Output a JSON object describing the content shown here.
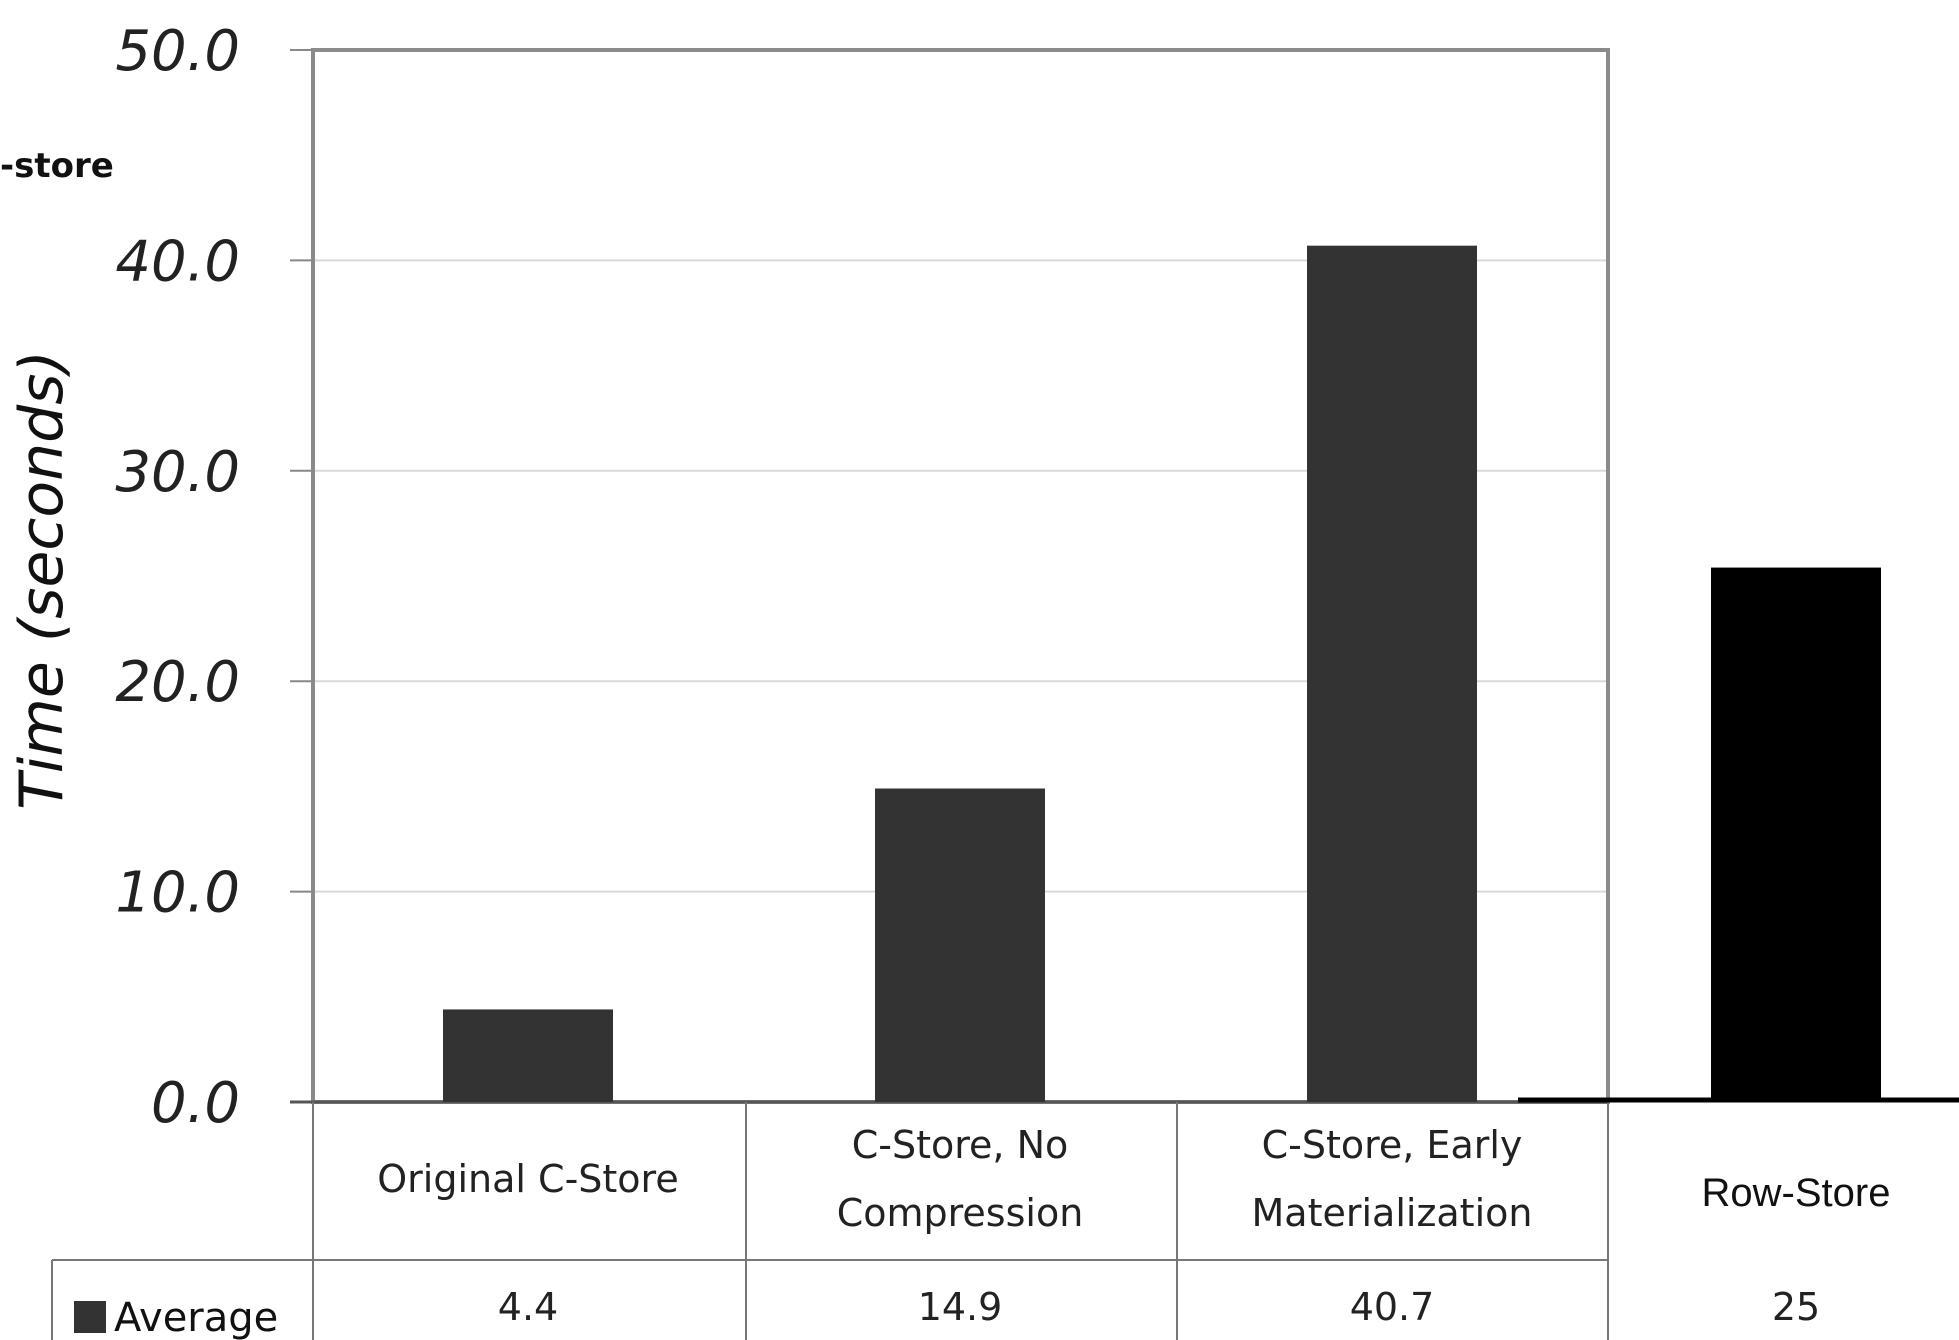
{
  "chart_data": {
    "type": "bar",
    "categories": [
      "Original C-Store",
      "C-Store, No Compression",
      "C-Store, Early Materialization",
      "Row-Store"
    ],
    "category_lines": [
      [
        "Original C-Store"
      ],
      [
        "C-Store, No",
        "Compression"
      ],
      [
        "C-Store, Early",
        "Materialization"
      ],
      [
        "Row-Store"
      ]
    ],
    "series": [
      {
        "name": "Average",
        "values": [
          4.4,
          14.9,
          40.7,
          25.4
        ],
        "value_labels": [
          "4.4",
          "14.9",
          "40.7",
          "25"
        ]
      }
    ],
    "ylabel": "Time (seconds)",
    "y_ticks": [
      "0.0",
      "10.0",
      "20.0",
      "30.0",
      "40.0",
      "50.0"
    ],
    "ylim": [
      0,
      50
    ],
    "partial_text": "-store",
    "grid": true,
    "legend": "table-left",
    "colors": {
      "bar": "#333333",
      "highlight_bar": "#000000",
      "grid": "#d9d9d9",
      "axis": "#888888"
    }
  }
}
